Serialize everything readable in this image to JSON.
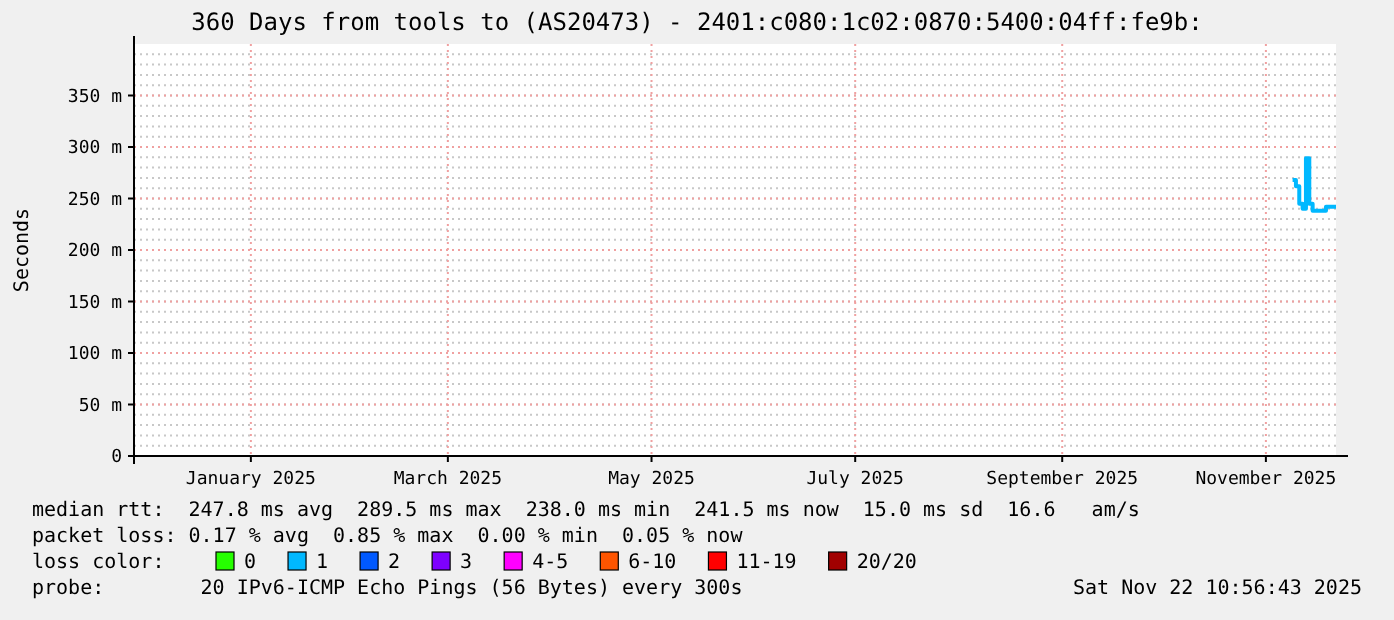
{
  "chart_data": {
    "type": "step",
    "title": "360 Days from tools to (AS20473) - 2401:c080:1c02:0870:5400:04ff:fe9b:",
    "ylabel": "Seconds",
    "x": [
      "2025-11-09",
      "2025-11-10",
      "2025-11-11",
      "2025-11-12",
      "2025-11-13",
      "2025-11-14",
      "2025-11-15",
      "2025-11-16",
      "2025-11-17",
      "2025-11-18",
      "2025-11-19",
      "2025-11-20",
      "2025-11-21",
      "2025-11-22"
    ],
    "series": [
      {
        "color": "#00b8ff",
        "values": [
          268,
          262,
          245,
          240,
          289,
          245,
          238,
          238,
          238,
          238,
          242,
          242,
          242,
          242
        ]
      }
    ],
    "xlim": [
      "2024-11-27",
      "2025-11-22"
    ],
    "xticks": [
      {
        "value": "2025-01-01",
        "label": "January 2025"
      },
      {
        "value": "2025-03-01",
        "label": "March 2025"
      },
      {
        "value": "2025-05-01",
        "label": "May 2025"
      },
      {
        "value": "2025-07-01",
        "label": "July 2025"
      },
      {
        "value": "2025-09-01",
        "label": "September 2025"
      },
      {
        "value": "2025-11-01",
        "label": "November 2025"
      }
    ],
    "ylim": [
      0,
      400
    ],
    "yticks": [
      0,
      {
        "value": 50,
        "label": "50 m"
      },
      {
        "value": 100,
        "label": "100 m"
      },
      {
        "value": 150,
        "label": "150 m"
      },
      {
        "value": 200,
        "label": "200 m"
      },
      {
        "value": 250,
        "label": "250 m"
      },
      {
        "value": 300,
        "label": "300 m"
      },
      {
        "value": 350,
        "label": "350 m"
      }
    ],
    "grid": true,
    "annotations": [
      "median rtt:  247.8 ms avg  289.5 ms max  238.0 ms min  241.5 ms now  15.0 ms sd  16.6   am/s",
      "packet loss: 0.17 % avg  0.85 % max  0.00 % min  0.05 % now",
      "loss color:",
      "0",
      "1",
      "2",
      "3",
      "4-5",
      "6-10",
      "11-19",
      "20/20",
      "probe:        20 IPv6-ICMP Echo Pings (56 Bytes) every 300s",
      "Sat Nov 22 10:56:43 2025"
    ]
  }
}
